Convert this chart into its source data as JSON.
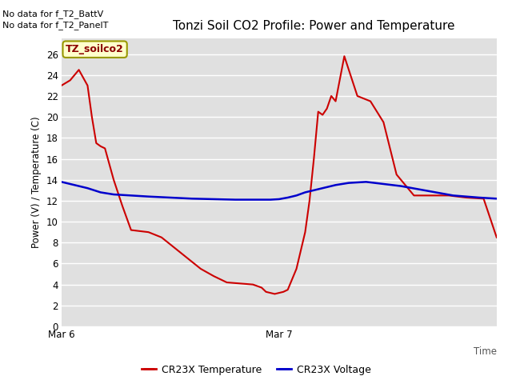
{
  "title": "Tonzi Soil CO2 Profile: Power and Temperature",
  "ylabel": "Power (V) / Temperature (C)",
  "no_data_text": [
    "No data for f_T2_BattV",
    "No data for f_T2_PanelT"
  ],
  "legend_label": "TZ_soilco2",
  "yticks": [
    0,
    2,
    4,
    6,
    8,
    10,
    12,
    14,
    16,
    18,
    20,
    22,
    24,
    26
  ],
  "ylim": [
    0,
    27.5
  ],
  "xtick_labels": [
    "Mar 6",
    "Mar 7"
  ],
  "xtick_positions": [
    0.0,
    0.5
  ],
  "xlim": [
    0.0,
    1.0
  ],
  "bg_color": "#e0e0e0",
  "legend_line1_color": "#cc0000",
  "legend_line2_color": "#0000cc",
  "legend_line1_label": "CR23X Temperature",
  "legend_line2_label": "CR23X Voltage",
  "red_x": [
    0.0,
    0.02,
    0.04,
    0.06,
    0.07,
    0.08,
    0.09,
    0.1,
    0.12,
    0.14,
    0.16,
    0.18,
    0.2,
    0.23,
    0.26,
    0.29,
    0.32,
    0.35,
    0.38,
    0.41,
    0.44,
    0.46,
    0.47,
    0.48,
    0.49,
    0.5,
    0.51,
    0.52,
    0.54,
    0.56,
    0.57,
    0.58,
    0.59,
    0.6,
    0.61,
    0.62,
    0.63,
    0.65,
    0.68,
    0.71,
    0.74,
    0.77,
    0.81,
    0.85,
    0.89,
    0.93,
    0.97,
    1.0
  ],
  "red_y": [
    23.0,
    23.5,
    24.5,
    23.0,
    20.0,
    17.5,
    17.2,
    17.0,
    14.0,
    11.5,
    9.2,
    9.1,
    9.0,
    8.5,
    7.5,
    6.5,
    5.5,
    4.8,
    4.2,
    4.1,
    4.0,
    3.7,
    3.3,
    3.2,
    3.1,
    3.2,
    3.3,
    3.5,
    5.5,
    9.0,
    12.0,
    16.0,
    20.5,
    20.2,
    20.8,
    22.0,
    21.5,
    25.8,
    22.0,
    21.5,
    19.5,
    14.5,
    12.5,
    12.5,
    12.5,
    12.3,
    12.2,
    8.5
  ],
  "blue_x": [
    0.0,
    0.03,
    0.06,
    0.09,
    0.12,
    0.16,
    0.2,
    0.25,
    0.3,
    0.35,
    0.4,
    0.45,
    0.48,
    0.5,
    0.52,
    0.54,
    0.56,
    0.58,
    0.6,
    0.63,
    0.66,
    0.7,
    0.74,
    0.78,
    0.82,
    0.86,
    0.9,
    0.93,
    0.96,
    1.0
  ],
  "blue_y": [
    13.8,
    13.5,
    13.2,
    12.8,
    12.6,
    12.5,
    12.4,
    12.3,
    12.2,
    12.15,
    12.1,
    12.1,
    12.1,
    12.15,
    12.3,
    12.5,
    12.8,
    13.0,
    13.2,
    13.5,
    13.7,
    13.8,
    13.6,
    13.4,
    13.1,
    12.8,
    12.5,
    12.4,
    12.3,
    12.2
  ]
}
